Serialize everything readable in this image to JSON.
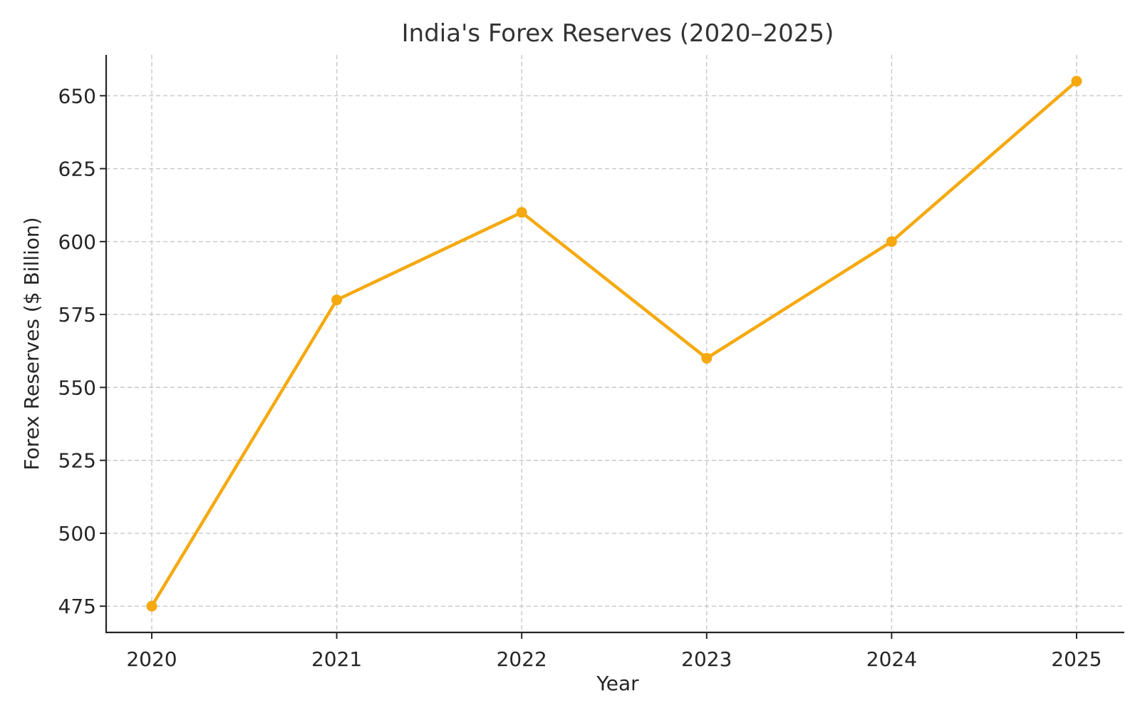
{
  "chart_data": {
    "type": "line",
    "title": "India's Forex Reserves (2020–2025)",
    "xlabel": "Year",
    "ylabel": "Forex Reserves ($ Billion)",
    "categories": [
      "2020",
      "2021",
      "2022",
      "2023",
      "2024",
      "2025"
    ],
    "series": [
      {
        "values": [
          475,
          580,
          610,
          560,
          600,
          655
        ],
        "color": "#f5a90f",
        "marker": "circle"
      }
    ],
    "ylim": [
      466,
      664
    ],
    "yticks": [
      475,
      500,
      525,
      550,
      575,
      600,
      625,
      650
    ],
    "ytick_labels": [
      "475",
      "500",
      "525",
      "550",
      "575",
      "600",
      "625",
      "650"
    ],
    "grid": true,
    "legend": "none"
  }
}
